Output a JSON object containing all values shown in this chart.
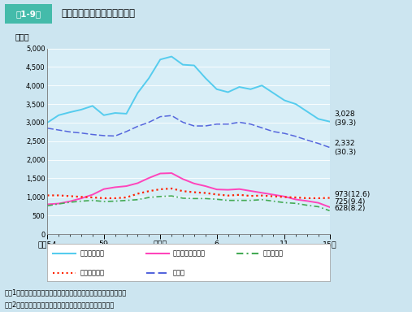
{
  "title_box": "第1-9図",
  "title_text": "状態別交通事故死者数の推移",
  "ylabel": "（人）",
  "ylim": [
    0,
    5000
  ],
  "ytick_vals": [
    0,
    500,
    1000,
    1500,
    2000,
    2500,
    3000,
    3500,
    4000,
    4500,
    5000
  ],
  "ytick_labels": [
    "0",
    "500",
    "1,000",
    "1,500",
    "2,000",
    "2,500",
    "3,000",
    "3,500",
    "4,000",
    "4,500",
    "5,000"
  ],
  "xtick_pos": [
    0,
    5,
    10,
    15,
    21,
    25
  ],
  "xtick_labels": [
    "昭和54",
    "59",
    "平成元",
    "6",
    "11",
    "15年"
  ],
  "xlim": [
    0,
    25
  ],
  "background_color": "#cce5f0",
  "plot_bg_color": "#d8eef7",
  "years": [
    0,
    1,
    2,
    3,
    4,
    5,
    6,
    7,
    8,
    9,
    10,
    11,
    12,
    13,
    14,
    15,
    16,
    17,
    18,
    19,
    20,
    21,
    22,
    23,
    24,
    25
  ],
  "jidosha": [
    3000,
    3200,
    3280,
    3350,
    3450,
    3200,
    3260,
    3240,
    3800,
    4200,
    4700,
    4780,
    4560,
    4540,
    4200,
    3900,
    3820,
    3960,
    3900,
    4000,
    3800,
    3600,
    3500,
    3300,
    3100,
    3028
  ],
  "nirin": [
    800,
    820,
    880,
    960,
    1060,
    1210,
    1260,
    1290,
    1370,
    1510,
    1630,
    1640,
    1480,
    1360,
    1290,
    1200,
    1190,
    1210,
    1160,
    1110,
    1060,
    1010,
    930,
    890,
    840,
    725
  ],
  "genfu": [
    760,
    810,
    855,
    885,
    905,
    875,
    885,
    905,
    925,
    985,
    1010,
    1025,
    965,
    955,
    955,
    935,
    905,
    905,
    905,
    925,
    885,
    845,
    825,
    775,
    735,
    628
  ],
  "jitensha": [
    1040,
    1040,
    1020,
    1000,
    985,
    965,
    965,
    985,
    1085,
    1155,
    1205,
    1225,
    1155,
    1125,
    1105,
    1065,
    1035,
    1055,
    1025,
    1035,
    1015,
    995,
    985,
    965,
    965,
    973
  ],
  "hoko": [
    2850,
    2800,
    2750,
    2720,
    2680,
    2650,
    2640,
    2760,
    2900,
    3010,
    3160,
    3190,
    3010,
    2910,
    2910,
    2960,
    2960,
    3010,
    2960,
    2860,
    2760,
    2710,
    2630,
    2530,
    2440,
    2332
  ],
  "line_colors": [
    "#55ccee",
    "#ff44bb",
    "#44aa55",
    "#ff2200",
    "#5566dd"
  ],
  "line_styles": [
    "-",
    "-",
    "-.",
    ":",
    "--"
  ],
  "line_widths": [
    1.4,
    1.4,
    1.2,
    1.6,
    1.1
  ],
  "end_label_jidosha": "3,028\n(39.3)",
  "end_label_hoko": "2,332\n(30.3)",
  "end_label_jitensha": "973(12.6)",
  "end_label_nirin": "725(9.4)",
  "end_label_genfu": "628(8.2)",
  "legend_labels": [
    "自動車乗車中",
    "自動二輪車乗車中",
    "原付乗車中",
    "自転車乗用中",
    "歩行中"
  ],
  "title_box_color": "#44bbaa",
  "note1": "注　1　警察庁資料による。ただし，「その他」は省略している。",
  "note2": "　　2　（　）内は，状態別死者数の構成率（％）である。"
}
